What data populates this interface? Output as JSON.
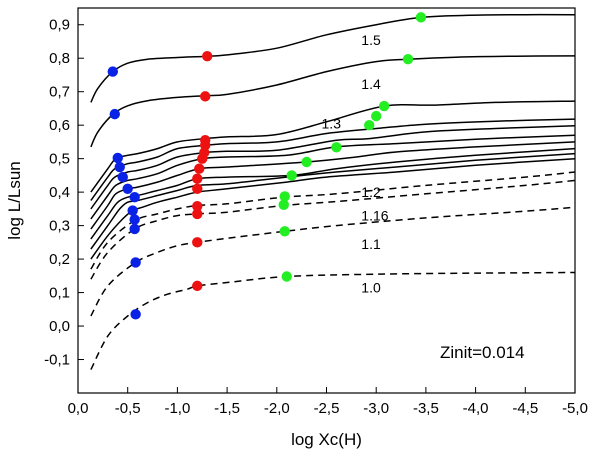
{
  "chart_data": {
    "type": "line",
    "title": "",
    "xlabel": "log Xc(H)",
    "ylabel": "log L/Lsun",
    "xlim": [
      0.0,
      -5.0
    ],
    "ylim": [
      -0.2,
      0.95
    ],
    "xticks": [
      "0,0",
      "-0,5",
      "-1,0",
      "-1,5",
      "-2,0",
      "-2,5",
      "-3,0",
      "-3,5",
      "-4,0",
      "-4,5",
      "-5,0"
    ],
    "yticks": [
      "-0,1",
      "0,0",
      "0,1",
      "0,2",
      "0,3",
      "0,4",
      "0,5",
      "0,6",
      "0,7",
      "0,8",
      "0,9"
    ],
    "annotation": "Zinit=0.014",
    "colors": {
      "blue": "#0a22e6",
      "red": "#ee1111",
      "green": "#22ee22",
      "line": "#000000"
    },
    "series": [
      {
        "name": "1.0",
        "style": "dashed",
        "label": "1.0",
        "x": [
          -0.13,
          -0.3,
          -0.5,
          -0.7,
          -0.9,
          -1.1,
          -1.2,
          -1.5,
          -2.1,
          -3.0,
          -4.0,
          -5.0
        ],
        "y": [
          -0.13,
          -0.03,
          0.03,
          0.07,
          0.095,
          0.11,
          0.12,
          0.13,
          0.148,
          0.155,
          0.158,
          0.16
        ]
      },
      {
        "name": "1.1",
        "style": "dashed",
        "label": "1.1",
        "x": [
          -0.13,
          -0.3,
          -0.58,
          -0.8,
          -1.0,
          -1.2,
          -1.5,
          -2.08,
          -2.6,
          -3.5,
          -4.5,
          -5.0
        ],
        "y": [
          0.03,
          0.12,
          0.19,
          0.22,
          0.24,
          0.25,
          0.262,
          0.283,
          0.3,
          0.323,
          0.343,
          0.355
        ]
      },
      {
        "name": "1.16",
        "style": "dashed",
        "label": "1.16",
        "x": [
          -0.13,
          -0.3,
          -0.57,
          -0.8,
          -1.0,
          -1.2,
          -1.5,
          -2.07,
          -2.6,
          -3.5,
          -4.5,
          -5.0
        ],
        "y": [
          0.14,
          0.22,
          0.29,
          0.315,
          0.33,
          0.335,
          0.34,
          0.36,
          0.372,
          0.395,
          0.42,
          0.435
        ]
      },
      {
        "name": "1.2",
        "style": "dashed",
        "label": "1.2",
        "x": [
          -0.13,
          -0.3,
          -0.57,
          -0.8,
          -1.0,
          -1.2,
          -1.5,
          -2.07,
          -2.6,
          -3.5,
          -4.5,
          -5.0
        ],
        "y": [
          0.17,
          0.25,
          0.315,
          0.335,
          0.35,
          0.36,
          0.365,
          0.385,
          0.395,
          0.42,
          0.445,
          0.46
        ]
      },
      {
        "name": "track5",
        "style": "solid",
        "label": "",
        "x": [
          -0.13,
          -0.3,
          -0.45,
          -0.55,
          -0.65,
          -0.8,
          -1.0,
          -1.2,
          -1.5,
          -2.1,
          -2.5,
          -3.2,
          -4.0,
          -5.0
        ],
        "y": [
          0.2,
          0.27,
          0.32,
          0.345,
          0.355,
          0.37,
          0.385,
          0.4,
          0.41,
          0.43,
          0.445,
          0.46,
          0.48,
          0.5
        ]
      },
      {
        "name": "track6",
        "style": "solid",
        "label": "",
        "x": [
          -0.13,
          -0.3,
          -0.42,
          -0.5,
          -0.6,
          -0.8,
          -1.0,
          -1.2,
          -1.5,
          -2.1,
          -2.6,
          -3.2,
          -4.0,
          -5.0
        ],
        "y": [
          0.23,
          0.3,
          0.35,
          0.37,
          0.375,
          0.39,
          0.405,
          0.42,
          0.425,
          0.445,
          0.46,
          0.475,
          0.495,
          0.515
        ]
      },
      {
        "name": "track7",
        "style": "solid",
        "label": "",
        "x": [
          -0.13,
          -0.3,
          -0.4,
          -0.5,
          -0.6,
          -0.8,
          -1.0,
          -1.2,
          -1.5,
          -2.15,
          -2.6,
          -3.2,
          -4.0,
          -5.0
        ],
        "y": [
          0.26,
          0.33,
          0.37,
          0.385,
          0.39,
          0.405,
          0.42,
          0.44,
          0.445,
          0.45,
          0.47,
          0.49,
          0.51,
          0.53
        ]
      },
      {
        "name": "track8",
        "style": "solid",
        "label": "",
        "x": [
          -0.13,
          -0.3,
          -0.38,
          -0.5,
          -0.6,
          -0.8,
          -1.0,
          -1.22,
          -1.5,
          -2.3,
          -2.8,
          -3.2,
          -4.0,
          -5.0
        ],
        "y": [
          0.29,
          0.36,
          0.395,
          0.41,
          0.415,
          0.43,
          0.45,
          0.47,
          0.475,
          0.49,
          0.505,
          0.52,
          0.535,
          0.55
        ]
      },
      {
        "name": "track9",
        "style": "solid",
        "label": "",
        "x": [
          -0.13,
          -0.3,
          -0.38,
          -0.5,
          -0.6,
          -0.8,
          -1.0,
          -1.25,
          -1.5,
          -2.1,
          -2.6,
          -3.2,
          -4.0,
          -5.0
        ],
        "y": [
          0.32,
          0.39,
          0.42,
          0.435,
          0.44,
          0.455,
          0.48,
          0.5,
          0.505,
          0.51,
          0.535,
          0.545,
          0.558,
          0.57
        ]
      },
      {
        "name": "track10",
        "style": "solid",
        "label": "",
        "x": [
          -0.13,
          -0.3,
          -0.37,
          -0.5,
          -0.6,
          -0.8,
          -1.0,
          -1.27,
          -1.5,
          -2.0,
          -2.6,
          -2.93,
          -3.5,
          -4.2,
          -5.0
        ],
        "y": [
          0.35,
          0.42,
          0.445,
          0.46,
          0.465,
          0.48,
          0.505,
          0.518,
          0.522,
          0.525,
          0.555,
          0.56,
          0.58,
          0.59,
          0.598
        ]
      },
      {
        "name": "track11",
        "style": "solid",
        "label": "",
        "x": [
          -0.13,
          -0.3,
          -0.37,
          -0.5,
          -0.6,
          -0.8,
          -1.0,
          -1.28,
          -1.5,
          -2.0,
          -2.5,
          -3.0,
          -3.5,
          -4.2,
          -5.0
        ],
        "y": [
          0.375,
          0.445,
          0.47,
          0.485,
          0.49,
          0.505,
          0.53,
          0.54,
          0.545,
          0.55,
          0.575,
          0.59,
          0.603,
          0.612,
          0.618
        ]
      },
      {
        "name": "1.3",
        "style": "solid",
        "label": "1.3",
        "x": [
          -0.13,
          -0.3,
          -0.38,
          -0.5,
          -0.6,
          -0.8,
          -1.0,
          -1.28,
          -1.5,
          -2.0,
          -2.5,
          -3.08,
          -3.6,
          -4.2,
          -5.0
        ],
        "y": [
          0.4,
          0.47,
          0.5,
          0.51,
          0.515,
          0.53,
          0.55,
          0.56,
          0.565,
          0.572,
          0.61,
          0.657,
          0.66,
          0.668,
          0.672
        ]
      },
      {
        "name": "1.4",
        "style": "solid",
        "label": "1.4",
        "x": [
          -0.13,
          -0.2,
          -0.35,
          -0.5,
          -0.7,
          -1.0,
          -1.28,
          -1.5,
          -2.0,
          -2.5,
          -3.0,
          -3.32,
          -3.8,
          -4.4,
          -5.0
        ],
        "y": [
          0.535,
          0.58,
          0.632,
          0.658,
          0.673,
          0.683,
          0.688,
          0.692,
          0.72,
          0.76,
          0.79,
          0.797,
          0.803,
          0.806,
          0.807
        ]
      },
      {
        "name": "1.5",
        "style": "solid",
        "label": "1.5",
        "x": [
          -0.13,
          -0.2,
          -0.35,
          -0.5,
          -0.7,
          -1.0,
          -1.3,
          -1.5,
          -2.0,
          -2.5,
          -3.0,
          -3.45,
          -3.9,
          -4.5,
          -5.0
        ],
        "y": [
          0.668,
          0.71,
          0.76,
          0.785,
          0.797,
          0.802,
          0.806,
          0.81,
          0.83,
          0.87,
          0.9,
          0.922,
          0.928,
          0.93,
          0.93
        ]
      }
    ],
    "markers": [
      {
        "color": "blue",
        "x": -0.58,
        "y": 0.035
      },
      {
        "color": "blue",
        "x": -0.58,
        "y": 0.19
      },
      {
        "color": "blue",
        "x": -0.57,
        "y": 0.29
      },
      {
        "color": "blue",
        "x": -0.57,
        "y": 0.318
      },
      {
        "color": "blue",
        "x": -0.55,
        "y": 0.345
      },
      {
        "color": "blue",
        "x": -0.57,
        "y": 0.385
      },
      {
        "color": "blue",
        "x": -0.5,
        "y": 0.41
      },
      {
        "color": "blue",
        "x": -0.45,
        "y": 0.445
      },
      {
        "color": "blue",
        "x": -0.42,
        "y": 0.475
      },
      {
        "color": "blue",
        "x": -0.4,
        "y": 0.502
      },
      {
        "color": "blue",
        "x": -0.37,
        "y": 0.633
      },
      {
        "color": "blue",
        "x": -0.35,
        "y": 0.76
      },
      {
        "color": "red",
        "x": -1.2,
        "y": 0.12
      },
      {
        "color": "red",
        "x": -1.2,
        "y": 0.25
      },
      {
        "color": "red",
        "x": -1.2,
        "y": 0.335
      },
      {
        "color": "red",
        "x": -1.2,
        "y": 0.358
      },
      {
        "color": "red",
        "x": -1.2,
        "y": 0.41
      },
      {
        "color": "red",
        "x": -1.2,
        "y": 0.44
      },
      {
        "color": "red",
        "x": -1.22,
        "y": 0.47
      },
      {
        "color": "red",
        "x": -1.25,
        "y": 0.5
      },
      {
        "color": "red",
        "x": -1.27,
        "y": 0.518
      },
      {
        "color": "red",
        "x": -1.28,
        "y": 0.54
      },
      {
        "color": "red",
        "x": -1.28,
        "y": 0.555
      },
      {
        "color": "red",
        "x": -1.28,
        "y": 0.686
      },
      {
        "color": "red",
        "x": -1.3,
        "y": 0.806
      },
      {
        "color": "green",
        "x": -2.1,
        "y": 0.148
      },
      {
        "color": "green",
        "x": -2.08,
        "y": 0.283
      },
      {
        "color": "green",
        "x": -2.07,
        "y": 0.362
      },
      {
        "color": "green",
        "x": -2.08,
        "y": 0.387
      },
      {
        "color": "green",
        "x": -2.15,
        "y": 0.45
      },
      {
        "color": "green",
        "x": -2.3,
        "y": 0.49
      },
      {
        "color": "green",
        "x": -2.6,
        "y": 0.534
      },
      {
        "color": "green",
        "x": -2.93,
        "y": 0.6
      },
      {
        "color": "green",
        "x": -3.0,
        "y": 0.627
      },
      {
        "color": "green",
        "x": -3.08,
        "y": 0.657
      },
      {
        "color": "green",
        "x": -3.32,
        "y": 0.797
      },
      {
        "color": "green",
        "x": -3.45,
        "y": 0.922
      }
    ],
    "track_labels": [
      {
        "text": "1.5",
        "x": -2.85,
        "y": 0.84
      },
      {
        "text": "1.4",
        "x": -2.85,
        "y": 0.708
      },
      {
        "text": "1.3",
        "x": -2.45,
        "y": 0.59
      },
      {
        "text": "1.2",
        "x": -2.85,
        "y": 0.385
      },
      {
        "text": "1.16",
        "x": -2.85,
        "y": 0.316
      },
      {
        "text": "1.1",
        "x": -2.85,
        "y": 0.23
      },
      {
        "text": "1.0",
        "x": -2.85,
        "y": 0.1
      }
    ]
  }
}
